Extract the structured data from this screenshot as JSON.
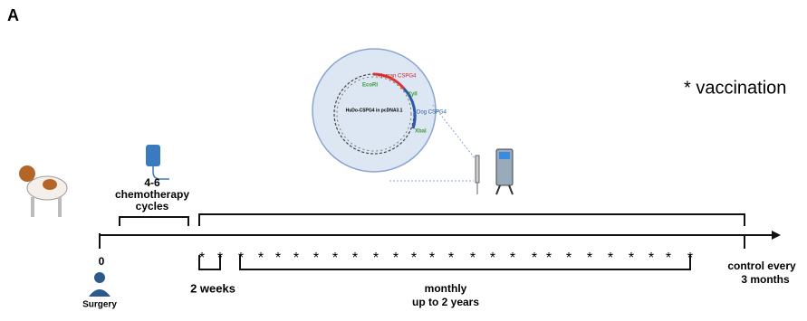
{
  "panel_label": "A",
  "legend": "* vaccination",
  "plasmid": {
    "name": "HuDo-CSPG4 in pcDNA3.1",
    "sites": [
      "EcoRI",
      "XylI",
      "XbaI"
    ],
    "human": "Human CSPG4",
    "dog": "Dog CSPG4"
  },
  "chemotherapy": [
    "4-6",
    "chemotherapy",
    "cycles"
  ],
  "surgery": {
    "time": "0",
    "label": "Surgery"
  },
  "timeline": {
    "stars": [
      "*",
      "*",
      "*",
      "*",
      "*",
      "*",
      "*",
      "*",
      "*",
      "*",
      "*",
      "*",
      "*",
      "*",
      "*",
      "*",
      "*",
      "*",
      "*",
      "*",
      "*",
      "*",
      "*",
      "*",
      "*",
      "*"
    ],
    "first_interval": "2 weeks",
    "monthly": [
      "monthly",
      "up to 2 years"
    ],
    "control": [
      "control every",
      "3 months"
    ]
  }
}
